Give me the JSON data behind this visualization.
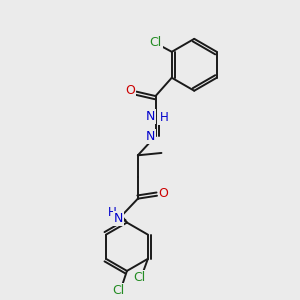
{
  "background_color": "#ebebeb",
  "bond_color": "#1a1a1a",
  "atom_colors": {
    "N": "#0000cc",
    "O": "#cc0000",
    "Cl": "#228B22",
    "H": "#0000cc",
    "C": "#1a1a1a"
  },
  "figsize": [
    3.0,
    3.0
  ],
  "dpi": 100
}
